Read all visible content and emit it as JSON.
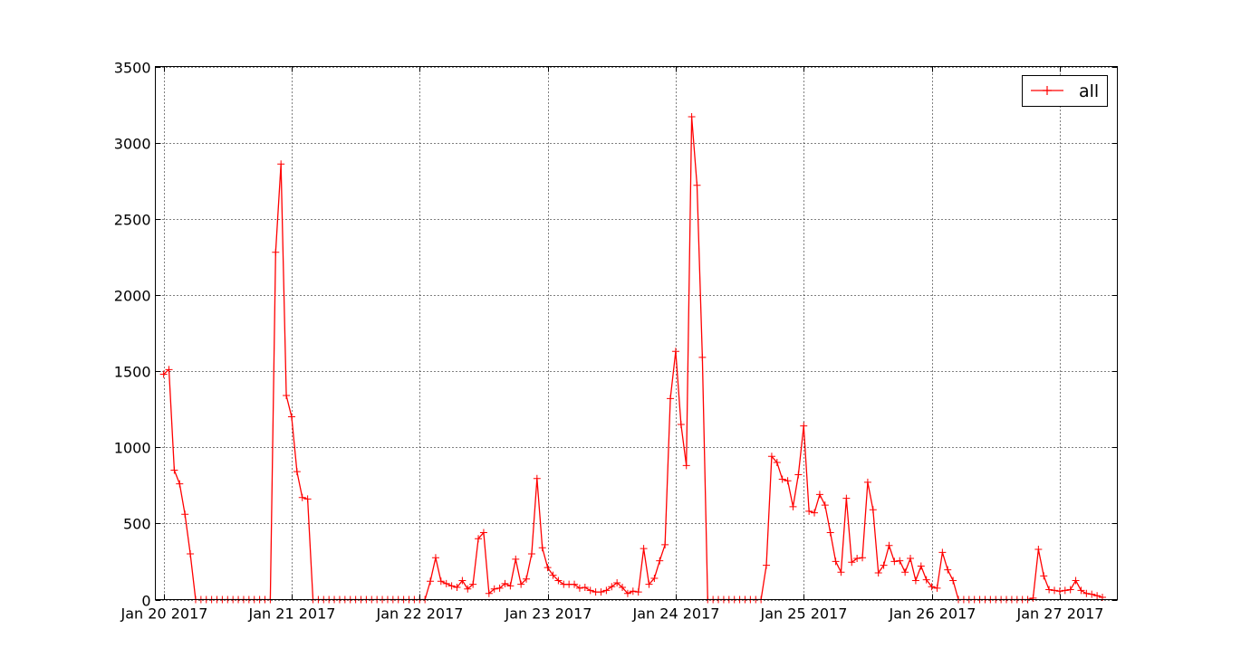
{
  "chart_data": {
    "type": "line",
    "title": "",
    "xlabel": "",
    "ylabel": "",
    "ylim": [
      0,
      3500
    ],
    "yticks": [
      0,
      500,
      1000,
      1500,
      2000,
      2500,
      3000,
      3500
    ],
    "xlim": [
      -1.55,
      178.8
    ],
    "x_unit": "hours",
    "xticks": [
      {
        "x": 0,
        "label": "Jan 20 2017"
      },
      {
        "x": 24,
        "label": "Jan 21 2017"
      },
      {
        "x": 48,
        "label": "Jan 22 2017"
      },
      {
        "x": 72,
        "label": "Jan 23 2017"
      },
      {
        "x": 96,
        "label": "Jan 24 2017"
      },
      {
        "x": 120,
        "label": "Jan 25 2017"
      },
      {
        "x": 144,
        "label": "Jan 26 2017"
      },
      {
        "x": 168,
        "label": "Jan 27 2017"
      }
    ],
    "grid": true,
    "legend_position": "top-right",
    "series": [
      {
        "name": "all",
        "color": "#ff0000",
        "marker": "+",
        "values": [
          1480,
          1510,
          850,
          760,
          560,
          300,
          0,
          0,
          0,
          0,
          0,
          0,
          0,
          0,
          0,
          0,
          0,
          0,
          0,
          0,
          0,
          2280,
          2860,
          1340,
          1200,
          840,
          670,
          660,
          0,
          0,
          0,
          0,
          0,
          0,
          0,
          0,
          0,
          0,
          0,
          0,
          0,
          0,
          0,
          0,
          0,
          0,
          0,
          0,
          0,
          0,
          120,
          275,
          120,
          105,
          90,
          80,
          125,
          70,
          100,
          400,
          440,
          40,
          70,
          75,
          105,
          90,
          265,
          100,
          135,
          300,
          795,
          340,
          210,
          160,
          125,
          100,
          100,
          100,
          75,
          80,
          60,
          50,
          50,
          60,
          85,
          110,
          80,
          40,
          55,
          50,
          335,
          100,
          140,
          255,
          360,
          1320,
          1630,
          1150,
          880,
          3170,
          2720,
          1590,
          0,
          0,
          0,
          0,
          0,
          0,
          0,
          0,
          0,
          0,
          0,
          225,
          940,
          900,
          790,
          780,
          610,
          820,
          1140,
          580,
          570,
          690,
          620,
          440,
          250,
          180,
          665,
          245,
          270,
          275,
          770,
          590,
          175,
          225,
          355,
          250,
          255,
          180,
          270,
          125,
          220,
          130,
          85,
          75,
          310,
          195,
          125,
          0,
          0,
          0,
          0,
          0,
          0,
          0,
          0,
          0,
          0,
          0,
          0,
          0,
          0,
          10,
          330,
          155,
          65,
          60,
          55,
          60,
          65,
          125,
          60,
          40,
          35,
          25,
          15
        ]
      }
    ]
  }
}
